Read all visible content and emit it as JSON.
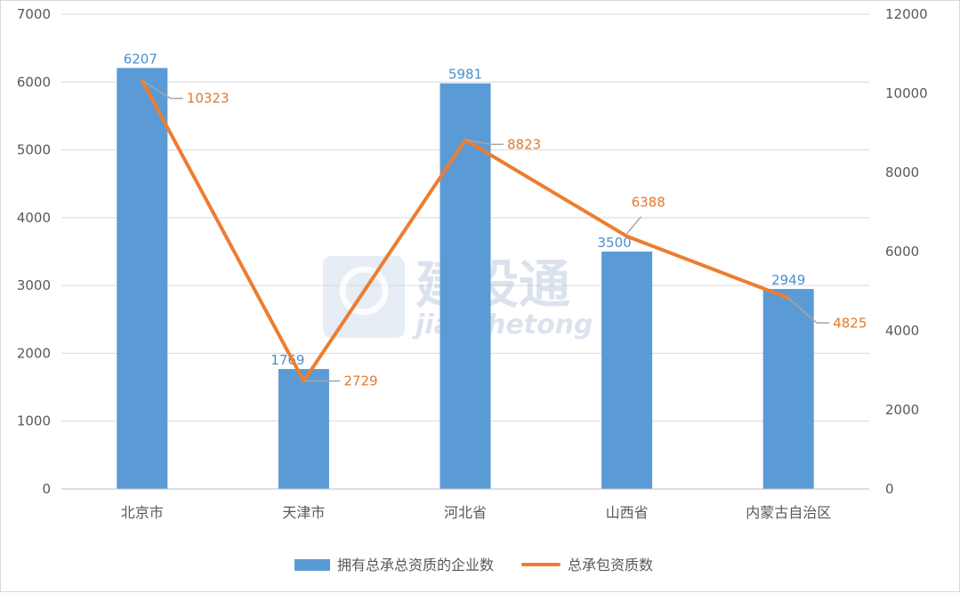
{
  "chart_data": {
    "type": "bar",
    "categories": [
      "北京市",
      "天津市",
      "河北省",
      "山西省",
      "内蒙古自治区"
    ],
    "series": [
      {
        "name": "拥有总承总资质的企业数",
        "type": "bar",
        "axis": "left",
        "color": "#5b9bd5",
        "values": [
          6207,
          1769,
          5981,
          3500,
          2949
        ]
      },
      {
        "name": "总承包资质数",
        "type": "line",
        "axis": "right",
        "color": "#ed7d31",
        "values": [
          10323,
          2729,
          8823,
          6388,
          4825
        ]
      }
    ],
    "ylim": [
      0,
      7000
    ],
    "y_ticks": [
      "0",
      "1000",
      "2000",
      "3000",
      "4000",
      "5000",
      "6000",
      "7000"
    ],
    "y2lim": [
      0,
      12000
    ],
    "y2_ticks": [
      "0",
      "2000",
      "4000",
      "6000",
      "8000",
      "10000",
      "12000"
    ],
    "grid": true,
    "legend_position": "bottom",
    "watermark": {
      "cn": "建设通",
      "en": "jianshetong"
    }
  }
}
